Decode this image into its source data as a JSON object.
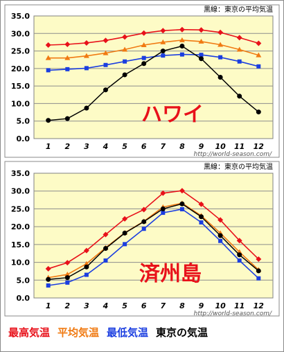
{
  "legend": [
    {
      "label": "最高気温",
      "color": "#e8111a"
    },
    {
      "label": "平均気温",
      "color": "#f07a12"
    },
    {
      "label": "最低気温",
      "color": "#1b3ee0"
    },
    {
      "label": "東京の気温",
      "color": "#000000"
    }
  ],
  "colors": {
    "max": "#e8111a",
    "avg": "#f07a12",
    "min": "#1b3ee0",
    "tokyo": "#000000",
    "plot_bg": "#fdfbc6",
    "panel_bg": "#ffffff"
  },
  "chart_data": [
    {
      "type": "line",
      "title": "ハワイ",
      "legend_note": "黒線：東京の平均気温",
      "watermark": "http://world-season.com/",
      "categories": [
        "1",
        "2",
        "3",
        "4",
        "5",
        "6",
        "7",
        "8",
        "9",
        "10",
        "11",
        "12"
      ],
      "ylim": [
        0,
        35
      ],
      "yticks": [
        "0.0",
        "5.0",
        "10.0",
        "15.0",
        "20.0",
        "25.0",
        "30.0",
        "35.0"
      ],
      "grid": true,
      "series": [
        {
          "key": "max",
          "values": [
            26.7,
            26.9,
            27.3,
            28.0,
            29.0,
            30.1,
            30.8,
            31.1,
            31.0,
            30.3,
            28.8,
            27.2
          ]
        },
        {
          "key": "avg",
          "values": [
            23.0,
            23.0,
            23.6,
            24.4,
            25.4,
            26.7,
            27.5,
            28.1,
            27.7,
            26.8,
            25.4,
            23.8
          ]
        },
        {
          "key": "min",
          "values": [
            19.5,
            19.8,
            20.1,
            21.0,
            22.0,
            23.0,
            23.7,
            24.0,
            23.9,
            23.2,
            22.0,
            20.6
          ]
        },
        {
          "key": "tokyo",
          "values": [
            5.2,
            5.7,
            8.7,
            13.9,
            18.2,
            21.4,
            25.0,
            26.4,
            22.8,
            17.5,
            12.1,
            7.6
          ]
        }
      ]
    },
    {
      "type": "line",
      "title": "済州島",
      "legend_note": "黒線：東京の平均気温",
      "watermark": "http://world-season.com/",
      "categories": [
        "1",
        "2",
        "3",
        "4",
        "5",
        "6",
        "7",
        "8",
        "9",
        "10",
        "11",
        "12"
      ],
      "ylim": [
        0,
        35
      ],
      "yticks": [
        "0.0",
        "5.0",
        "10.0",
        "15.0",
        "20.0",
        "25.0",
        "30.0",
        "35.0"
      ],
      "grid": true,
      "series": [
        {
          "key": "max",
          "values": [
            8.2,
            9.9,
            13.3,
            17.8,
            22.2,
            24.8,
            29.4,
            30.1,
            26.3,
            21.9,
            16.1,
            10.9
          ]
        },
        {
          "key": "avg",
          "values": [
            5.7,
            6.6,
            9.6,
            14.1,
            18.3,
            21.5,
            25.5,
            26.6,
            23.1,
            18.2,
            12.9,
            7.9
          ]
        },
        {
          "key": "min",
          "values": [
            3.5,
            4.3,
            6.5,
            10.5,
            15.1,
            19.4,
            23.9,
            24.9,
            21.2,
            16.0,
            10.5,
            5.5
          ]
        },
        {
          "key": "tokyo",
          "values": [
            5.2,
            5.7,
            8.7,
            13.9,
            18.2,
            21.4,
            25.0,
            26.4,
            22.8,
            17.5,
            12.1,
            7.6
          ]
        }
      ]
    }
  ]
}
